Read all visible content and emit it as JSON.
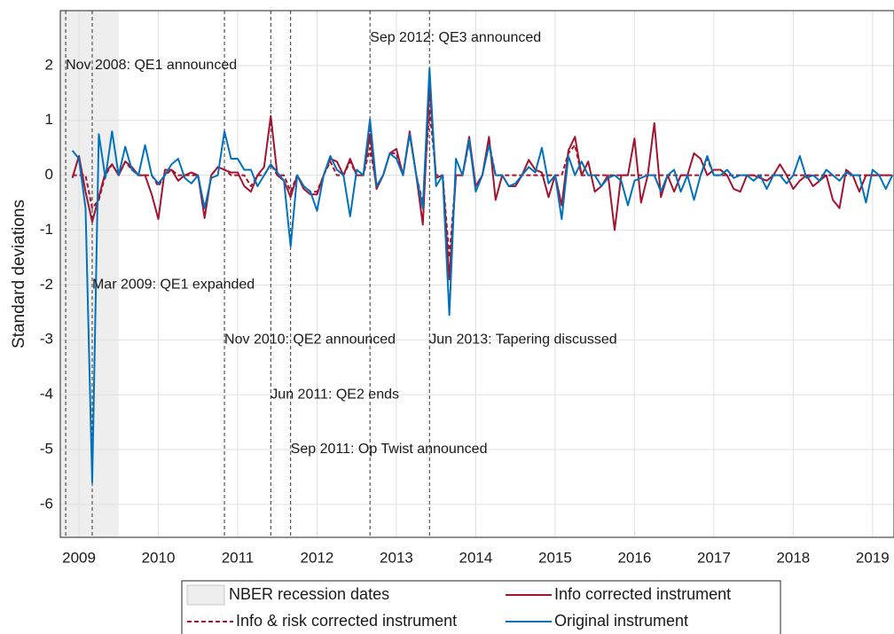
{
  "chart_data": {
    "type": "line",
    "ylabel": "Standard deviations",
    "xlim": [
      2008.765,
      2019.27
    ],
    "ylim": [
      -6.6,
      3
    ],
    "xticks": [
      2009,
      2010,
      2011,
      2012,
      2013,
      2014,
      2015,
      2016,
      2017,
      2018,
      2019
    ],
    "yticks": [
      -6,
      -5,
      -4,
      -3,
      -2,
      -1,
      0,
      1,
      2
    ],
    "grid": true,
    "recession": {
      "name": "NBER recession dates",
      "start": 2007.917,
      "end": 2009.5,
      "color": "#eeeeee"
    },
    "events": [
      {
        "x": 2008.833,
        "label": "Nov 2008: QE1 announced"
      },
      {
        "x": 2009.167,
        "label": "Mar 2009: QE1 expanded"
      },
      {
        "x": 2010.833,
        "label": "Nov 2010: QE2 announced"
      },
      {
        "x": 2011.417,
        "label": "Jun 2011: QE2 ends"
      },
      {
        "x": 2011.667,
        "label": "Sep 2011: Op Twist announced"
      },
      {
        "x": 2012.667,
        "label": "Sep 2012: QE3 announced"
      },
      {
        "x": 2013.417,
        "label": "Jun 2013: Tapering discussed"
      }
    ],
    "x": [
      2008.917,
      2009.0,
      2009.083,
      2009.167,
      2009.25,
      2009.333,
      2009.417,
      2009.5,
      2009.583,
      2009.667,
      2009.75,
      2009.833,
      2009.917,
      2010.0,
      2010.083,
      2010.167,
      2010.25,
      2010.333,
      2010.417,
      2010.5,
      2010.583,
      2010.667,
      2010.75,
      2010.833,
      2010.917,
      2011.0,
      2011.083,
      2011.167,
      2011.25,
      2011.333,
      2011.417,
      2011.5,
      2011.583,
      2011.667,
      2011.75,
      2011.833,
      2011.917,
      2012.0,
      2012.083,
      2012.167,
      2012.25,
      2012.333,
      2012.417,
      2012.5,
      2012.583,
      2012.667,
      2012.75,
      2012.833,
      2012.917,
      2013.0,
      2013.083,
      2013.167,
      2013.25,
      2013.333,
      2013.417,
      2013.5,
      2013.583,
      2013.667,
      2013.75,
      2013.833,
      2013.917,
      2014.0,
      2014.083,
      2014.167,
      2014.25,
      2014.333,
      2014.417,
      2014.5,
      2014.583,
      2014.667,
      2014.75,
      2014.833,
      2014.917,
      2015.0,
      2015.083,
      2015.167,
      2015.25,
      2015.333,
      2015.417,
      2015.5,
      2015.583,
      2015.667,
      2015.75,
      2015.833,
      2015.917,
      2016.0,
      2016.083,
      2016.167,
      2016.25,
      2016.333,
      2016.417,
      2016.5,
      2016.583,
      2016.667,
      2016.75,
      2016.833,
      2016.917,
      2017.0,
      2017.083,
      2017.167,
      2017.25,
      2017.333,
      2017.417,
      2017.5,
      2017.583,
      2017.667,
      2017.75,
      2017.833,
      2017.917,
      2018.0,
      2018.083,
      2018.167,
      2018.25,
      2018.333,
      2018.417,
      2018.5,
      2018.583,
      2018.667,
      2018.75,
      2018.833,
      2018.917,
      2019.0,
      2019.083,
      2019.167,
      2019.25
    ],
    "series": [
      {
        "name": "Info corrected instrument",
        "color": "#a2142f",
        "dash": false,
        "values": [
          -0.05,
          0.35,
          -0.3,
          -0.85,
          -0.4,
          0.05,
          0.2,
          0.0,
          0.25,
          0.15,
          0.0,
          0.0,
          -0.35,
          -0.8,
          0.1,
          0.1,
          -0.1,
          0.0,
          0.05,
          0.0,
          -0.78,
          0.0,
          0.15,
          0.1,
          0.05,
          0.05,
          -0.2,
          -0.3,
          0.0,
          0.15,
          1.08,
          0.0,
          -0.1,
          -0.4,
          0.0,
          -0.25,
          -0.35,
          -0.35,
          0.0,
          0.3,
          0.25,
          0.0,
          0.3,
          0.0,
          0.0,
          0.75,
          -0.25,
          0.0,
          0.4,
          0.48,
          0.0,
          0.8,
          0.0,
          -0.9,
          1.65,
          -0.05,
          0.0,
          -1.9,
          0.0,
          0.0,
          0.7,
          -0.2,
          0.0,
          0.7,
          -0.45,
          0.0,
          -0.2,
          -0.2,
          0.0,
          0.28,
          0.1,
          0.05,
          -0.4,
          0.0,
          -0.55,
          0.45,
          0.7,
          0.0,
          0.25,
          -0.3,
          -0.2,
          0.0,
          -1.0,
          0.0,
          0.0,
          0.67,
          -0.5,
          0.0,
          0.95,
          -0.4,
          0.0,
          -0.3,
          0.0,
          0.0,
          0.4,
          0.3,
          0.0,
          0.1,
          0.1,
          0.0,
          -0.25,
          -0.3,
          0.0,
          0.0,
          -0.05,
          -0.1,
          0.0,
          0.2,
          0.0,
          -0.25,
          -0.1,
          0.0,
          -0.2,
          -0.1,
          0.0,
          -0.45,
          -0.6,
          0.1,
          0.0,
          -0.3,
          0.0,
          0.0,
          0.0,
          0.0,
          0.0
        ]
      },
      {
        "name": "Info & risk corrected instrument",
        "color": "#a2142f",
        "dash": true,
        "values": [
          0,
          0,
          0,
          -0.6,
          -0.45,
          0,
          0.2,
          0,
          0.25,
          0.1,
          0,
          0,
          0,
          -0.2,
          0,
          0.1,
          0,
          0,
          0,
          0,
          -0.7,
          0,
          0.15,
          0.1,
          0,
          0,
          0,
          -0.2,
          0,
          0,
          0.2,
          0,
          0,
          -0.3,
          0,
          -0.2,
          -0.3,
          -0.3,
          0,
          0.25,
          0,
          0,
          0.25,
          0,
          0,
          0.5,
          -0.2,
          0,
          0.4,
          0.4,
          0,
          0.75,
          0,
          -0.5,
          1.2,
          0,
          0,
          -1.5,
          0,
          0,
          0.6,
          -0.2,
          0,
          0.6,
          0,
          0,
          0,
          0,
          0,
          0,
          0,
          0,
          0,
          0,
          0,
          0.4,
          0.55,
          0,
          0,
          0,
          0,
          0,
          0,
          0,
          0,
          0,
          0,
          0,
          0,
          0,
          0,
          0,
          0,
          0,
          0,
          0,
          0.3,
          0,
          0,
          0,
          0,
          0,
          0,
          0,
          0,
          0,
          0,
          0,
          0,
          0,
          0,
          0,
          0,
          0,
          0,
          0,
          0,
          0,
          0,
          0,
          0,
          0,
          0,
          0,
          0
        ]
      },
      {
        "name": "Original instrument",
        "color": "#0072bd",
        "dash": false,
        "values": [
          0.45,
          0.3,
          -0.6,
          -5.6,
          0.75,
          -0.05,
          0.8,
          0.0,
          0.52,
          0.1,
          0.0,
          0.55,
          0.0,
          -0.15,
          0.0,
          0.2,
          0.3,
          -0.05,
          -0.15,
          0.0,
          -0.6,
          -0.05,
          0.0,
          0.8,
          0.3,
          0.3,
          0.1,
          0.1,
          -0.2,
          0.0,
          0.2,
          0.05,
          -0.1,
          -1.3,
          0.0,
          -0.2,
          -0.3,
          -0.65,
          0.0,
          0.35,
          0.1,
          0.0,
          -0.75,
          0.1,
          0.0,
          1.02,
          -0.2,
          0.0,
          0.4,
          0.3,
          0.0,
          0.75,
          0.0,
          -0.6,
          1.95,
          -0.2,
          0.0,
          -2.55,
          0.3,
          0.0,
          0.65,
          -0.3,
          0.0,
          0.55,
          0.0,
          0.0,
          -0.2,
          -0.15,
          0.0,
          0.15,
          0.05,
          0.5,
          -0.15,
          0.0,
          -0.8,
          0.35,
          0.0,
          0.25,
          0.0,
          0.0,
          -0.2,
          -0.05,
          0.0,
          -0.1,
          -0.55,
          -0.1,
          -0.05,
          0.0,
          0.0,
          -0.3,
          0.0,
          0.1,
          -0.3,
          0.0,
          -0.45,
          0.0,
          0.35,
          0.0,
          0.0,
          0.1,
          -0.05,
          0.0,
          0.0,
          -0.1,
          0.0,
          -0.25,
          0.0,
          0.0,
          -0.15,
          0.0,
          0.35,
          -0.05,
          0.0,
          -0.1,
          0.1,
          0.0,
          -0.1,
          0.05,
          0.0,
          0.0,
          -0.5,
          0.1,
          0.0,
          -0.25,
          0.0
        ]
      }
    ]
  }
}
